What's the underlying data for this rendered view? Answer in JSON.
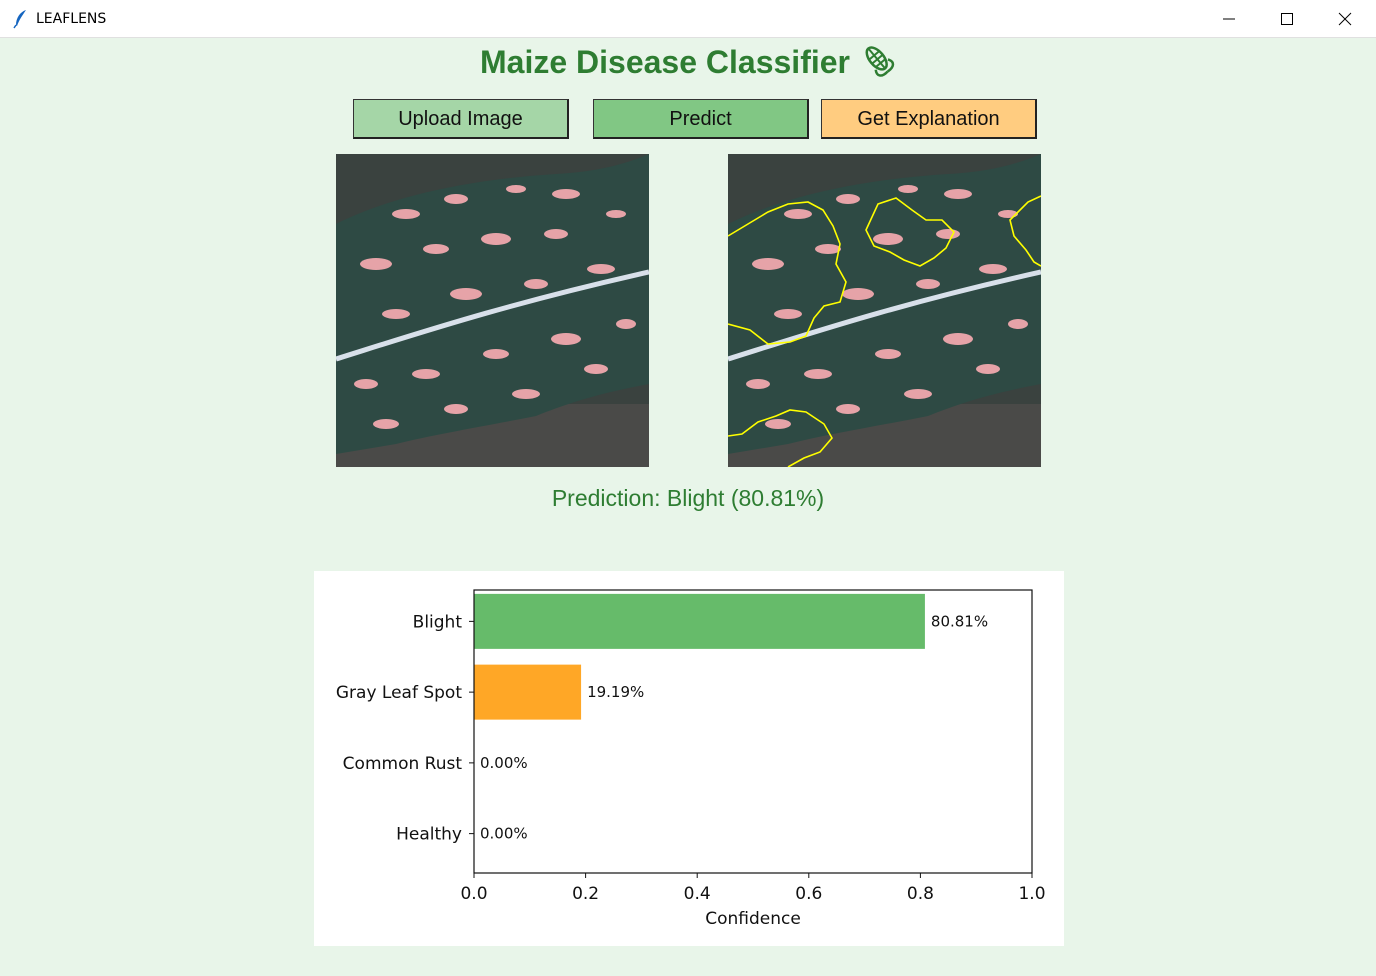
{
  "window": {
    "title": "LEAFLENS",
    "app_icon": "feather-icon",
    "controls": [
      "minimize-icon",
      "maximize-icon",
      "close-icon"
    ]
  },
  "header": {
    "title": "Maize Disease Classifier",
    "icon": "corn-icon"
  },
  "toolbar": {
    "upload_label": "Upload Image",
    "predict_label": "Predict",
    "explain_label": "Get Explanation"
  },
  "colors": {
    "background": "#e8f5e9",
    "title_green": "#2e7d32",
    "upload_button": "#a5d6a7",
    "predict_button": "#81c784",
    "explain_button": "#ffcc80",
    "bar_blight": "#66bb6a",
    "bar_gray_leaf_spot": "#ffa726",
    "explanation_outline": "#ffff00"
  },
  "images": {
    "original": "leaf-image",
    "explanation": "leaf-explanation-image"
  },
  "result": {
    "prediction_text": "Prediction: Blight (80.81%)"
  },
  "chart_data": {
    "type": "bar",
    "orientation": "horizontal",
    "categories": [
      "Blight",
      "Gray Leaf Spot",
      "Common Rust",
      "Healthy"
    ],
    "values": [
      0.8081,
      0.1919,
      0.0,
      0.0
    ],
    "value_labels": [
      "80.81%",
      "19.19%",
      "0.00%",
      "0.00%"
    ],
    "bar_colors": [
      "#66bb6a",
      "#ffa726",
      "#66bb6a",
      "#66bb6a"
    ],
    "xlabel": "Confidence",
    "xlim": [
      0.0,
      1.0
    ],
    "xticks": [
      "0.0",
      "0.2",
      "0.4",
      "0.6",
      "0.8",
      "1.0"
    ],
    "grid": false
  }
}
